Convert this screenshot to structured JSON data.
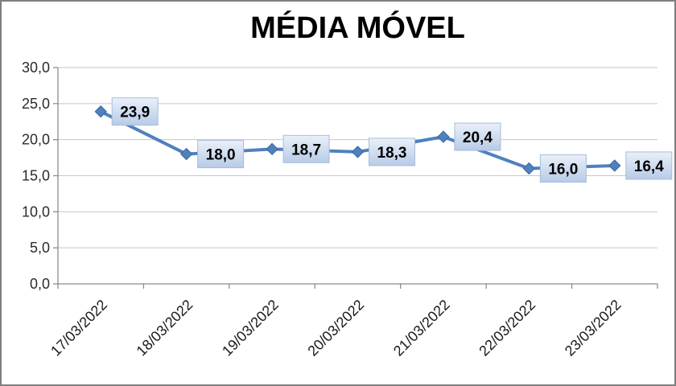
{
  "window": {
    "background": "#ffffff",
    "frame_border_color": "#7f7f7f"
  },
  "chart_data": {
    "type": "line",
    "title": "MÉDIA MÓVEL",
    "categories": [
      "17/03/2022",
      "18/03/2022",
      "19/03/2022",
      "20/03/2022",
      "21/03/2022",
      "22/03/2022",
      "23/03/2022"
    ],
    "values": [
      23.9,
      18.0,
      18.7,
      18.3,
      20.4,
      16.0,
      16.4
    ],
    "value_labels": [
      "23,9",
      "18,0",
      "18,7",
      "18,3",
      "20,4",
      "16,0",
      "16,4"
    ],
    "xlabel": "",
    "ylabel": "",
    "ylim": [
      0,
      30
    ],
    "y_ticks": [
      0,
      5,
      10,
      15,
      20,
      25,
      30
    ],
    "y_tick_labels": [
      "0,0",
      "5,0",
      "10,0",
      "15,0",
      "20,0",
      "25,0",
      "30,0"
    ],
    "grid": true,
    "legend_position": "none",
    "colors": {
      "line": "#4F81BD",
      "marker_fill": "#4F81BD",
      "marker_border": "#3A679F",
      "label_bg_top": "#EAF0F9",
      "label_bg_bottom": "#B7CBE7",
      "label_border": "#A7BDDC",
      "label_text": "#000000",
      "gridline": "#C6C6C6",
      "axis": "#8C8C8C",
      "tick_label": "#2b2b2b"
    }
  }
}
